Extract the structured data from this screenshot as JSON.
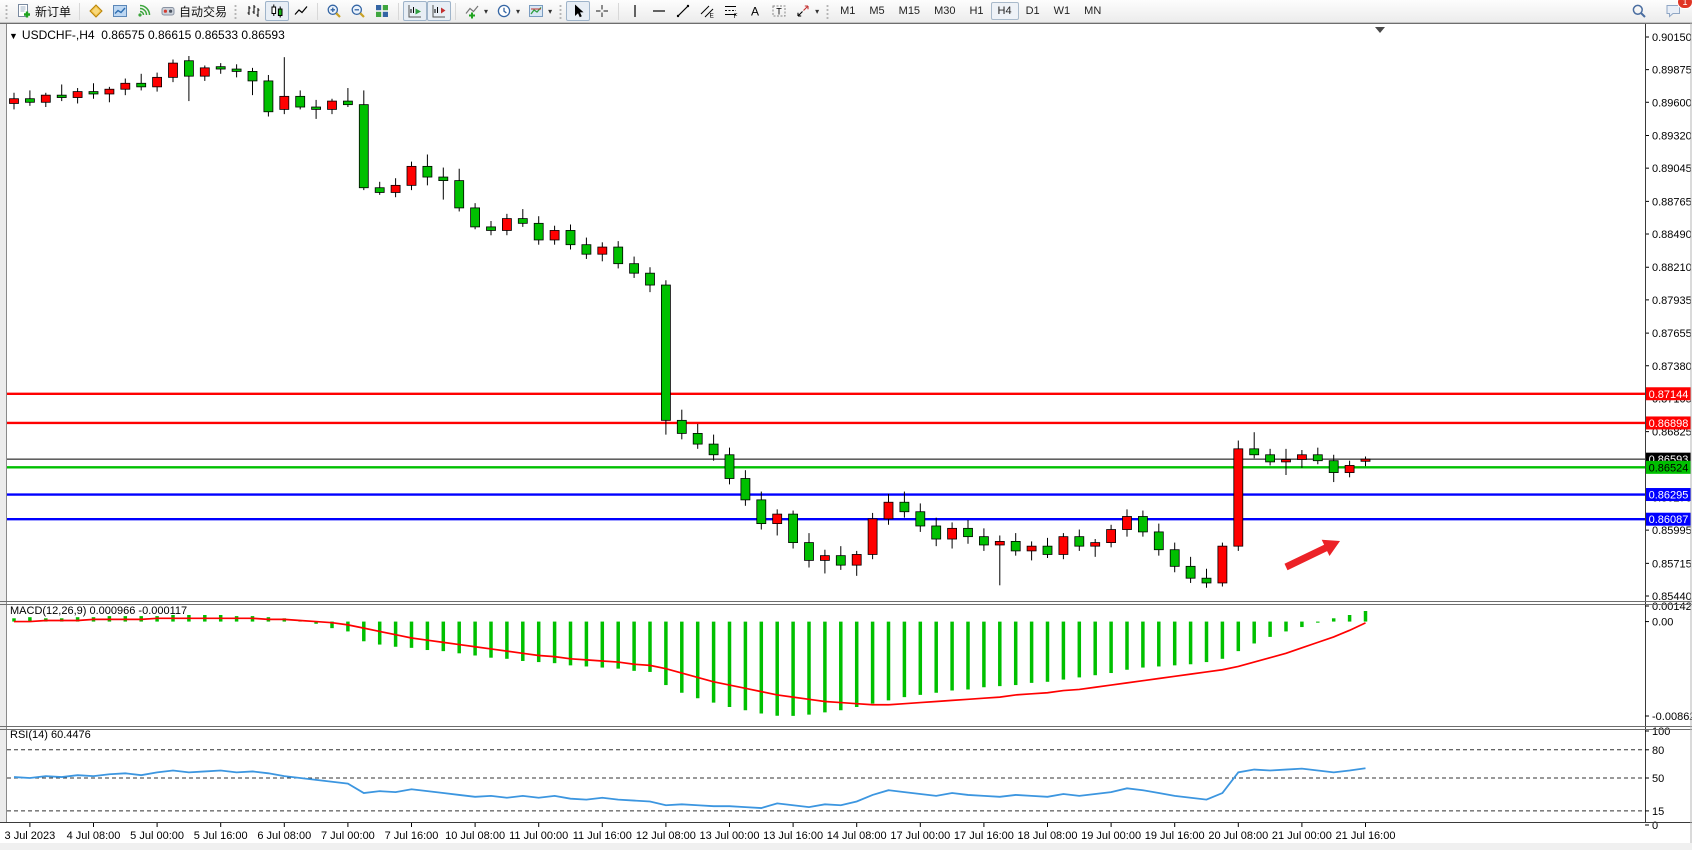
{
  "toolbar": {
    "new_order_label": "新订单",
    "autotrade_label": "自动交易",
    "caret": "▾",
    "icon_letters": {
      "channel": "E",
      "fibo": "F",
      "text": "A",
      "label": "T"
    },
    "timeframes": [
      "M1",
      "M5",
      "M15",
      "M30",
      "H1",
      "H4",
      "D1",
      "W1",
      "MN"
    ],
    "active_timeframe": "H4",
    "notification_count": "1"
  },
  "chart": {
    "collapse_marker": "▼",
    "title": "USDCHF-,H4",
    "ohlc": "0.86575 0.86615 0.86533 0.86593"
  },
  "chart_data": {
    "type": "candlestick",
    "symbol": "USDCHF",
    "timeframe": "H4",
    "current": {
      "open": 0.86575,
      "high": 0.86615,
      "low": 0.86533,
      "close": 0.86593
    },
    "price_axis": {
      "top": 0.9015,
      "bottom": 0.8544,
      "ticks": [
        "0.90150",
        "0.89875",
        "0.89600",
        "0.89320",
        "0.89045",
        "0.88765",
        "0.88490",
        "0.88210",
        "0.87935",
        "0.87655",
        "0.87380",
        "0.87105",
        "0.86825",
        "0.86550",
        "0.86270",
        "0.85995",
        "0.85715",
        "0.85440"
      ]
    },
    "time_labels": [
      "3 Jul 2023",
      "4 Jul 08:00",
      "5 Jul 00:00",
      "5 Jul 16:00",
      "6 Jul 08:00",
      "7 Jul 00:00",
      "7 Jul 16:00",
      "10 Jul 08:00",
      "11 Jul 00:00",
      "11 Jul 16:00",
      "12 Jul 08:00",
      "13 Jul 00:00",
      "13 Jul 16:00",
      "14 Jul 08:00",
      "17 Jul 00:00",
      "17 Jul 16:00",
      "18 Jul 08:00",
      "19 Jul 00:00",
      "19 Jul 16:00",
      "20 Jul 08:00",
      "21 Jul 00:00",
      "21 Jul 16:00"
    ],
    "candles": [
      [
        0.8959,
        0.8968,
        0.8954,
        0.8963
      ],
      [
        0.8963,
        0.897,
        0.8957,
        0.896
      ],
      [
        0.896,
        0.8968,
        0.8956,
        0.8966
      ],
      [
        0.8966,
        0.8975,
        0.8961,
        0.8964
      ],
      [
        0.8964,
        0.8972,
        0.8959,
        0.8969
      ],
      [
        0.8969,
        0.8976,
        0.8963,
        0.8967
      ],
      [
        0.8967,
        0.8973,
        0.896,
        0.8971
      ],
      [
        0.8971,
        0.898,
        0.8966,
        0.8976
      ],
      [
        0.8976,
        0.8984,
        0.897,
        0.8973
      ],
      [
        0.8973,
        0.8985,
        0.8969,
        0.8981
      ],
      [
        0.8981,
        0.8996,
        0.8977,
        0.8993
      ],
      [
        0.8995,
        0.8999,
        0.8961,
        0.8982
      ],
      [
        0.8982,
        0.8991,
        0.8978,
        0.8989
      ],
      [
        0.899,
        0.8993,
        0.8984,
        0.8988
      ],
      [
        0.8988,
        0.8992,
        0.8981,
        0.8986
      ],
      [
        0.8986,
        0.8989,
        0.8966,
        0.8978
      ],
      [
        0.8978,
        0.8983,
        0.8948,
        0.8952
      ],
      [
        0.8954,
        0.8998,
        0.895,
        0.8965
      ],
      [
        0.8965,
        0.897,
        0.8954,
        0.8956
      ],
      [
        0.8956,
        0.8962,
        0.8946,
        0.8954
      ],
      [
        0.8954,
        0.8963,
        0.895,
        0.8961
      ],
      [
        0.8961,
        0.8972,
        0.8956,
        0.8958
      ],
      [
        0.8958,
        0.897,
        0.8886,
        0.8888
      ],
      [
        0.8888,
        0.8893,
        0.8882,
        0.8884
      ],
      [
        0.8884,
        0.8896,
        0.888,
        0.889
      ],
      [
        0.889,
        0.891,
        0.8886,
        0.8906
      ],
      [
        0.8906,
        0.8916,
        0.889,
        0.8897
      ],
      [
        0.8897,
        0.8905,
        0.8878,
        0.8894
      ],
      [
        0.8894,
        0.8904,
        0.8868,
        0.8871
      ],
      [
        0.8871,
        0.8875,
        0.8853,
        0.8855
      ],
      [
        0.8855,
        0.886,
        0.8848,
        0.8852
      ],
      [
        0.8852,
        0.8866,
        0.8848,
        0.8862
      ],
      [
        0.8862,
        0.887,
        0.8855,
        0.8858
      ],
      [
        0.8858,
        0.8864,
        0.884,
        0.8844
      ],
      [
        0.8844,
        0.8856,
        0.884,
        0.8852
      ],
      [
        0.8852,
        0.8857,
        0.8836,
        0.884
      ],
      [
        0.884,
        0.8846,
        0.8828,
        0.8832
      ],
      [
        0.8832,
        0.8842,
        0.8826,
        0.8838
      ],
      [
        0.8838,
        0.8843,
        0.882,
        0.8824
      ],
      [
        0.8824,
        0.883,
        0.8812,
        0.8816
      ],
      [
        0.8816,
        0.8821,
        0.88,
        0.8806
      ],
      [
        0.8806,
        0.881,
        0.868,
        0.8692
      ],
      [
        0.8692,
        0.8701,
        0.8676,
        0.8681
      ],
      [
        0.8681,
        0.8689,
        0.8668,
        0.8672
      ],
      [
        0.8672,
        0.868,
        0.8658,
        0.8663
      ],
      [
        0.8663,
        0.8669,
        0.8638,
        0.8643
      ],
      [
        0.8643,
        0.865,
        0.862,
        0.8625
      ],
      [
        0.8625,
        0.8632,
        0.86,
        0.8605
      ],
      [
        0.8605,
        0.8617,
        0.8595,
        0.8613
      ],
      [
        0.8613,
        0.8616,
        0.8584,
        0.8589
      ],
      [
        0.8589,
        0.8597,
        0.8568,
        0.8574
      ],
      [
        0.8574,
        0.8583,
        0.8563,
        0.8578
      ],
      [
        0.8578,
        0.8586,
        0.8566,
        0.857
      ],
      [
        0.857,
        0.8582,
        0.8561,
        0.8579
      ],
      [
        0.8579,
        0.8614,
        0.8575,
        0.8609
      ],
      [
        0.8609,
        0.863,
        0.8604,
        0.8623
      ],
      [
        0.8623,
        0.8632,
        0.861,
        0.8615
      ],
      [
        0.8615,
        0.8622,
        0.8598,
        0.8603
      ],
      [
        0.8603,
        0.861,
        0.8586,
        0.8592
      ],
      [
        0.8592,
        0.8606,
        0.8584,
        0.8601
      ],
      [
        0.8601,
        0.8608,
        0.8588,
        0.8594
      ],
      [
        0.8594,
        0.8601,
        0.8582,
        0.8587
      ],
      [
        0.8587,
        0.8595,
        0.8553,
        0.859
      ],
      [
        0.859,
        0.8597,
        0.8578,
        0.8582
      ],
      [
        0.8582,
        0.859,
        0.8574,
        0.8586
      ],
      [
        0.8586,
        0.8593,
        0.8576,
        0.8579
      ],
      [
        0.8579,
        0.8597,
        0.8575,
        0.8594
      ],
      [
        0.8594,
        0.86,
        0.8582,
        0.8586
      ],
      [
        0.8586,
        0.8592,
        0.8577,
        0.8589
      ],
      [
        0.8589,
        0.8604,
        0.8585,
        0.86
      ],
      [
        0.86,
        0.8617,
        0.8594,
        0.8611
      ],
      [
        0.8611,
        0.8616,
        0.8594,
        0.8598
      ],
      [
        0.8598,
        0.8605,
        0.8578,
        0.8583
      ],
      [
        0.8583,
        0.8589,
        0.8564,
        0.8569
      ],
      [
        0.8569,
        0.8577,
        0.8555,
        0.8559
      ],
      [
        0.8559,
        0.8567,
        0.8551,
        0.8555
      ],
      [
        0.8555,
        0.8589,
        0.8552,
        0.8586
      ],
      [
        0.8586,
        0.8675,
        0.8582,
        0.8668
      ],
      [
        0.8668,
        0.8682,
        0.866,
        0.8663
      ],
      [
        0.8663,
        0.8668,
        0.8654,
        0.8657
      ],
      [
        0.8657,
        0.8668,
        0.8646,
        0.8659
      ],
      [
        0.8659,
        0.8667,
        0.8652,
        0.8663
      ],
      [
        0.8663,
        0.8669,
        0.8655,
        0.8658
      ],
      [
        0.8658,
        0.8663,
        0.864,
        0.8648
      ],
      [
        0.8648,
        0.8658,
        0.8644,
        0.8654
      ],
      [
        0.86575,
        0.86615,
        0.86533,
        0.86593
      ]
    ],
    "levels": [
      {
        "price": 0.87144,
        "label": "0.87144",
        "color": "#FF0000",
        "text_color": "#FFFFFF"
      },
      {
        "price": 0.86898,
        "label": "0.86898",
        "color": "#FF0000",
        "text_color": "#FFFFFF"
      },
      {
        "price": 0.86524,
        "label": "0.86524",
        "color": "#00C000",
        "text_color": "#000000"
      },
      {
        "price": 0.86295,
        "label": "0.86295",
        "color": "#0000FF",
        "text_color": "#FFFFFF"
      },
      {
        "price": 0.86087,
        "label": "0.86087",
        "color": "#0000FF",
        "text_color": "#FFFFFF"
      }
    ],
    "current_price": {
      "value": 0.86593,
      "label": "0.86593",
      "color": "#000000",
      "text_color": "#FFFFFF"
    },
    "macd": {
      "label": "MACD(12,26,9) 0.000966 -0.000117",
      "value": 0.000966,
      "signal_value": -0.000117,
      "range": {
        "max": 0.001423,
        "min": -0.008626
      },
      "ticks": [
        [
          "0.001423",
          0.001423
        ],
        [
          "0.00",
          0
        ],
        [
          "-0.008626",
          -0.008626
        ]
      ],
      "histogram": [
        0.0003,
        0.0004,
        0.0003,
        0.0003,
        0.0004,
        0.0004,
        0.0005,
        0.0005,
        0.0005,
        0.0005,
        0.0006,
        0.0006,
        0.0006,
        0.0006,
        0.0005,
        0.0005,
        0.0004,
        0.0003,
        0.0001,
        -0.0002,
        -0.0006,
        -0.0009,
        -0.0018,
        -0.0021,
        -0.0023,
        -0.0024,
        -0.0026,
        -0.0027,
        -0.0029,
        -0.0031,
        -0.0033,
        -0.0034,
        -0.0036,
        -0.0037,
        -0.0038,
        -0.004,
        -0.0041,
        -0.0042,
        -0.0043,
        -0.0045,
        -0.0046,
        -0.0058,
        -0.0065,
        -0.007,
        -0.0074,
        -0.0078,
        -0.0081,
        -0.0084,
        -0.0086,
        -0.00862,
        -0.0085,
        -0.0083,
        -0.0081,
        -0.0078,
        -0.0075,
        -0.0072,
        -0.0069,
        -0.0067,
        -0.0065,
        -0.0063,
        -0.0062,
        -0.006,
        -0.0059,
        -0.0058,
        -0.0056,
        -0.0055,
        -0.0053,
        -0.0051,
        -0.0049,
        -0.0047,
        -0.0044,
        -0.0042,
        -0.0041,
        -0.004,
        -0.0039,
        -0.0037,
        -0.0034,
        -0.0027,
        -0.002,
        -0.0014,
        -0.0009,
        -0.0005,
        -0.0001,
        0.0003,
        0.0006,
        0.000966
      ],
      "signal": [
        0.0,
        0.0,
        0.0001,
        0.0001,
        0.0001,
        0.0002,
        0.0002,
        0.0002,
        0.0002,
        0.0003,
        0.0003,
        0.0003,
        0.0003,
        0.0003,
        0.0003,
        0.0003,
        0.0002,
        0.0002,
        0.0001,
        0.0,
        -0.0001,
        -0.0003,
        -0.0006,
        -0.0009,
        -0.0012,
        -0.0015,
        -0.0017,
        -0.0019,
        -0.0021,
        -0.0023,
        -0.0025,
        -0.0027,
        -0.0029,
        -0.0031,
        -0.0032,
        -0.0034,
        -0.0035,
        -0.0036,
        -0.0037,
        -0.0039,
        -0.004,
        -0.0043,
        -0.0047,
        -0.0051,
        -0.0055,
        -0.0058,
        -0.0061,
        -0.0064,
        -0.0067,
        -0.0069,
        -0.0071,
        -0.0073,
        -0.0074,
        -0.0075,
        -0.0076,
        -0.0076,
        -0.0075,
        -0.0074,
        -0.0073,
        -0.0072,
        -0.0071,
        -0.007,
        -0.0069,
        -0.0067,
        -0.0066,
        -0.0065,
        -0.0063,
        -0.0062,
        -0.006,
        -0.0058,
        -0.0056,
        -0.0054,
        -0.0052,
        -0.005,
        -0.0048,
        -0.0046,
        -0.0044,
        -0.0041,
        -0.0037,
        -0.0033,
        -0.0029,
        -0.0024,
        -0.0019,
        -0.0014,
        -0.0008,
        -0.000117
      ]
    },
    "rsi": {
      "label": "RSI(14) 60.4476",
      "value": 60.4476,
      "ticks": [
        [
          "100",
          100
        ],
        [
          "80",
          80
        ],
        [
          "50",
          50
        ],
        [
          "15",
          15
        ],
        [
          "0",
          0
        ]
      ],
      "levels": [
        80,
        50,
        15
      ],
      "values": [
        51,
        50,
        52,
        51,
        53,
        52,
        54,
        55,
        53,
        56,
        58,
        56,
        57,
        58,
        56,
        57,
        55,
        52,
        50,
        48,
        46,
        44,
        34,
        36,
        35,
        38,
        36,
        34,
        32,
        30,
        31,
        29,
        31,
        29,
        31,
        28,
        27,
        29,
        27,
        26,
        25,
        21,
        22,
        21,
        20,
        20,
        19,
        18,
        23,
        21,
        19,
        22,
        21,
        25,
        32,
        37,
        35,
        33,
        31,
        34,
        32,
        31,
        30,
        32,
        31,
        30,
        33,
        31,
        33,
        35,
        39,
        37,
        34,
        31,
        29,
        27,
        34,
        56,
        59,
        58,
        59,
        60,
        58,
        56,
        58,
        60.4
      ]
    },
    "colors": {
      "up": "#FF0000",
      "down": "#00C000",
      "wick": "#000000",
      "macd_histogram": "#00C000",
      "macd_signal": "#FF0000",
      "rsi_line": "#3C96E0",
      "level_blue": "#0000FF",
      "arrow": "#EC2227"
    },
    "annotations": [
      {
        "type": "arrow",
        "direction": "up-right"
      }
    ]
  }
}
